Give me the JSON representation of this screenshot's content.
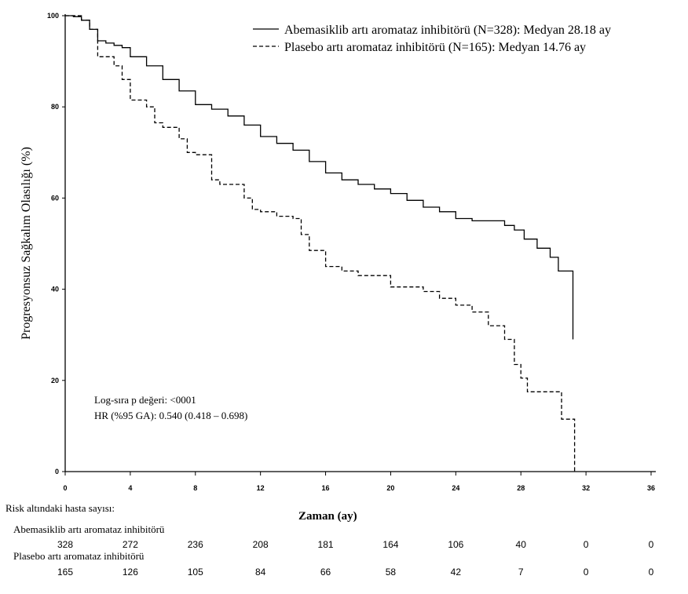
{
  "chart_data": {
    "type": "line",
    "subtype": "kaplan-meier",
    "xlabel": "Zaman (ay)",
    "ylabel": "Progresyonsuz Sağkalım Olasılığı (%)",
    "xlim": [
      0,
      36
    ],
    "ylim": [
      0,
      100
    ],
    "xticks": [
      0,
      4,
      8,
      12,
      16,
      20,
      24,
      28,
      32,
      36
    ],
    "yticks": [
      0,
      20,
      40,
      60,
      80,
      100
    ],
    "grid": false,
    "legend_position": "top-right",
    "series": [
      {
        "name": "Abemasiklib artı aromataz inhibitörü (N=328): Medyan 28.18 ay",
        "line_style": "solid",
        "x": [
          0,
          0.5,
          1,
          1.5,
          2,
          2.5,
          3,
          3.5,
          4,
          5,
          6,
          7,
          8,
          9,
          10,
          11,
          12,
          13,
          14,
          15,
          16,
          17,
          18,
          19,
          20,
          21,
          22,
          23,
          24,
          25,
          26,
          27,
          27.6,
          28.2,
          29,
          29.8,
          30.3,
          31.2,
          31.2
        ],
        "y": [
          100,
          99.8,
          99,
          97,
          94.5,
          94,
          93.5,
          93,
          91,
          89,
          86,
          83.5,
          80.5,
          79.5,
          78,
          76,
          73.5,
          72,
          70.5,
          68,
          65.5,
          64,
          63,
          62,
          61,
          59.5,
          58,
          57,
          55.5,
          55,
          55,
          54,
          53,
          51,
          49,
          47,
          44,
          44,
          29
        ]
      },
      {
        "name": "Plasebo artı aromataz inhibitörü (N=165): Medyan 14.76 ay",
        "line_style": "dashed",
        "x": [
          0,
          1,
          1.5,
          2,
          3,
          3.5,
          4,
          5,
          5.5,
          6,
          7,
          7.5,
          8,
          9,
          9.5,
          10,
          11,
          11.5,
          12,
          13,
          14,
          14.5,
          15,
          16,
          17,
          18,
          19,
          20,
          22,
          23,
          24,
          25,
          26,
          27,
          27.6,
          28,
          28.4,
          30.5,
          31.3,
          31.3
        ],
        "y": [
          100,
          99,
          97,
          91,
          89,
          86,
          81.5,
          80,
          76.5,
          75.5,
          73,
          70,
          69.5,
          64,
          63,
          63,
          60,
          57.5,
          57,
          56,
          55.5,
          52,
          48.5,
          45,
          44,
          43,
          43,
          40.5,
          39.5,
          38,
          36.5,
          35,
          32,
          29,
          23.5,
          20.5,
          17.5,
          11.5,
          11.5,
          0
        ]
      }
    ],
    "annotations": [
      "Log-sıra p değeri: <0001",
      "HR (%95 GA): 0.540 (0.418 – 0.698)"
    ]
  },
  "risk_table": {
    "title": "Risk altındaki hasta sayısı:",
    "time_points": [
      0,
      4,
      8,
      12,
      16,
      20,
      24,
      28,
      32,
      36
    ],
    "groups": [
      {
        "label": "Abemasiklib artı aromataz inhibitörü",
        "counts": [
          "328",
          "272",
          "236",
          "208",
          "181",
          "164",
          "106",
          "40",
          "0",
          "0"
        ]
      },
      {
        "label": "Plasebo artı aromataz inhibitörü",
        "counts": [
          "165",
          "126",
          "105",
          "84",
          "66",
          "58",
          "42",
          "7",
          "0",
          "0"
        ]
      }
    ]
  }
}
